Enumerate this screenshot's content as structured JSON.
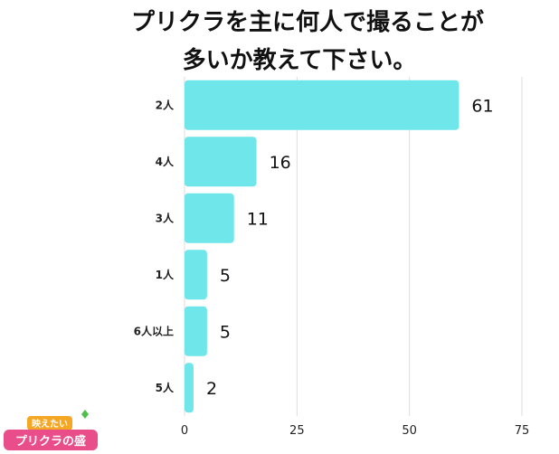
{
  "chart_data": {
    "type": "bar",
    "orientation": "horizontal",
    "title_lines": [
      "プリクラを主に何人で撮ることが",
      "多いか教えて下さい。"
    ],
    "categories": [
      "2人",
      "4人",
      "3人",
      "1人",
      "6人以上",
      "5人"
    ],
    "values": [
      61,
      16,
      11,
      5,
      5,
      2
    ],
    "xlim": [
      0,
      75
    ],
    "xticks": [
      0,
      25,
      50,
      75
    ],
    "grid": true,
    "bar_color": "#6ee6ea",
    "grid_color": "#dddddd"
  },
  "logo": {
    "top_text": "映えたい",
    "main_text": "プリクラの盛"
  }
}
